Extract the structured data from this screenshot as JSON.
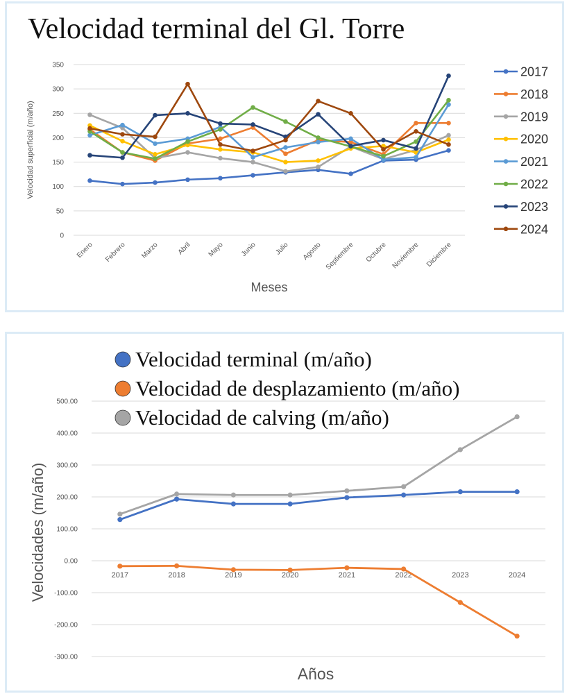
{
  "chart_data": [
    {
      "type": "line",
      "title": "Velocidad terminal del Gl. Torre",
      "xlabel": "Meses",
      "ylabel": "Velocidad superficial  (m/año)",
      "ylim": [
        0,
        350
      ],
      "yticks": [
        0,
        50,
        100,
        150,
        200,
        250,
        300,
        350
      ],
      "ytick_labels": [
        "0",
        "50",
        "100",
        "150",
        "200",
        "250",
        "300",
        "350"
      ],
      "grid": true,
      "legend": "right",
      "categories": [
        "Enero",
        "Febrero",
        "Marzo",
        "Abril",
        "Mayo",
        "Junio",
        "Julio",
        "Agosto",
        "Septiembre",
        "Octubre",
        "Noviembre",
        "Diciembre"
      ],
      "series": [
        {
          "name": "2017",
          "color": "#4472c4",
          "values": [
            112,
            105,
            108,
            114,
            117,
            123,
            129,
            134,
            126,
            153,
            155,
            174
          ]
        },
        {
          "name": "2018",
          "color": "#ed7d31",
          "values": [
            217,
            170,
            153,
            188,
            198,
            221,
            167,
            195,
            191,
            166,
            230,
            230
          ]
        },
        {
          "name": "2019",
          "color": "#a5a5a5",
          "values": [
            247,
            220,
            158,
            170,
            158,
            150,
            131,
            140,
            182,
            156,
            175,
            205
          ]
        },
        {
          "name": "2020",
          "color": "#ffc000",
          "values": [
            225,
            193,
            166,
            185,
            176,
            170,
            150,
            153,
            178,
            183,
            170,
            196
          ]
        },
        {
          "name": "2021",
          "color": "#5b9bd5",
          "values": [
            205,
            226,
            188,
            198,
            222,
            160,
            180,
            191,
            198,
            155,
            160,
            268
          ]
        },
        {
          "name": "2022",
          "color": "#70ad47",
          "values": [
            213,
            170,
            157,
            192,
            217,
            262,
            233,
            200,
            182,
            162,
            192,
            277
          ]
        },
        {
          "name": "2023",
          "color": "#264478",
          "values": [
            164,
            159,
            246,
            250,
            229,
            227,
            202,
            248,
            183,
            195,
            178,
            327
          ]
        },
        {
          "name": "2024",
          "color": "#9e480e",
          "values": [
            219,
            207,
            202,
            310,
            186,
            173,
            195,
            275,
            250,
            176,
            213,
            186
          ]
        }
      ]
    },
    {
      "type": "line",
      "title": "",
      "xlabel": "Años",
      "ylabel": "Velocidades (m/año)",
      "ylim": [
        -300,
        500
      ],
      "yticks": [
        -300,
        -200,
        -100,
        0,
        100,
        200,
        300,
        400,
        500
      ],
      "ytick_labels": [
        "-300.00",
        "-200.00",
        "-100.00",
        "0.00",
        "100.00",
        "200.00",
        "300.00",
        "400.00",
        "500.00"
      ],
      "grid": true,
      "legend": "top",
      "categories": [
        "2017",
        "2018",
        "2019",
        "2020",
        "2021",
        "2022",
        "2023",
        "2024"
      ],
      "series": [
        {
          "name": "Velocidad terminal (m/año)",
          "color": "#4472c4",
          "values": [
            129,
            193,
            178,
            178,
            198,
            206,
            216,
            216
          ]
        },
        {
          "name": "Velocidad de desplazamiento (m/año)",
          "color": "#ed7d31",
          "values": [
            -17,
            -16,
            -28,
            -29,
            -22,
            -26,
            -131,
            -236
          ]
        },
        {
          "name": "Velocidad de calving (m/año)",
          "color": "#a5a5a5",
          "values": [
            146,
            209,
            206,
            206,
            219,
            232,
            348,
            451
          ]
        }
      ]
    }
  ]
}
